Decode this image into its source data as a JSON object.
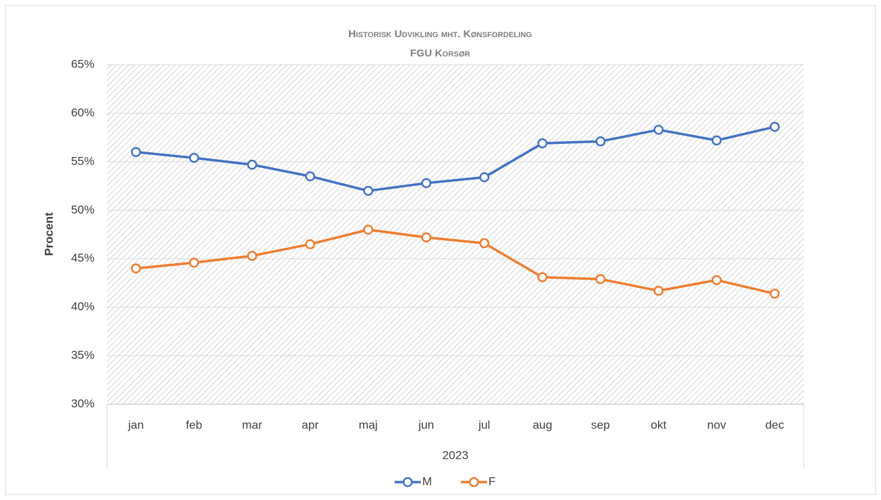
{
  "chart_data": {
    "type": "line",
    "title": "Historisk Udvikling mht. Kønsfordeling",
    "subtitle": "FGU Korsør",
    "y_label": "Procent",
    "x_label": "2023",
    "categories": [
      "jan",
      "feb",
      "mar",
      "apr",
      "maj",
      "jun",
      "jul",
      "aug",
      "sep",
      "okt",
      "nov",
      "dec"
    ],
    "series": [
      {
        "name": "M",
        "color": "#4472c4",
        "values": [
          56.0,
          55.4,
          54.7,
          53.5,
          52.0,
          52.8,
          53.4,
          56.9,
          57.1,
          58.3,
          57.2,
          58.6
        ]
      },
      {
        "name": "F",
        "color": "#ed7d31",
        "values": [
          44.0,
          44.6,
          45.3,
          46.5,
          48.0,
          47.2,
          46.6,
          43.1,
          42.9,
          41.7,
          42.8,
          41.4
        ]
      }
    ],
    "ylim": [
      30,
      65
    ],
    "yticks": [
      {
        "value": 30,
        "label": "30%"
      },
      {
        "value": 35,
        "label": "35%"
      },
      {
        "value": 40,
        "label": "40%"
      },
      {
        "value": 45,
        "label": "45%"
      },
      {
        "value": 50,
        "label": "50%"
      },
      {
        "value": 55,
        "label": "55%"
      },
      {
        "value": 60,
        "label": "60%"
      },
      {
        "value": 65,
        "label": "65%"
      }
    ],
    "grid": true,
    "legend": "bottom"
  }
}
